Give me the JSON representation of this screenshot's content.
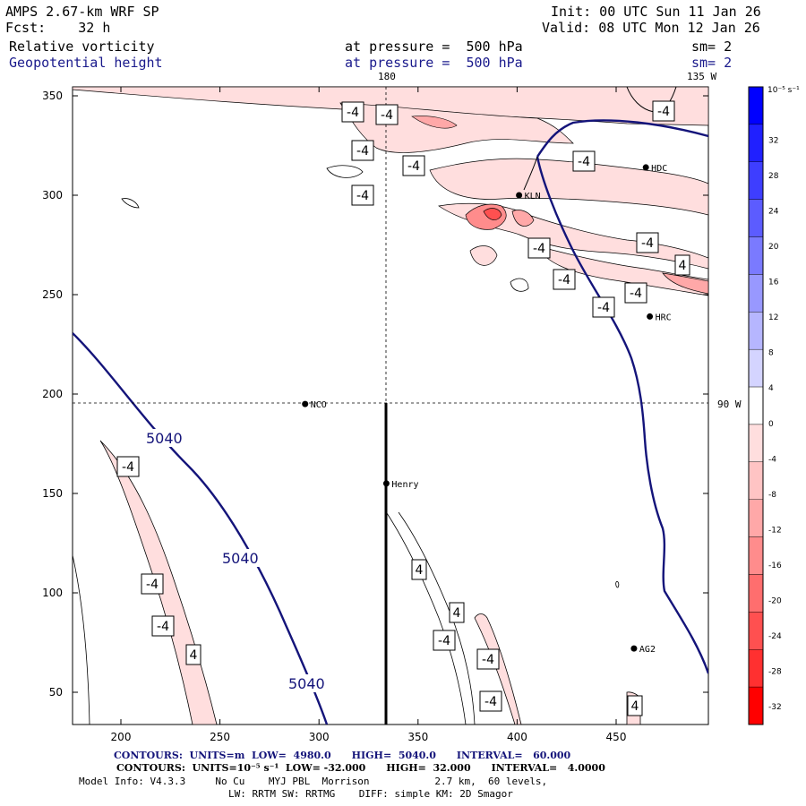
{
  "header": {
    "model": "AMPS 2.67-km WRF SP",
    "forecast": "Fcst:    32 h",
    "init": "Init: 00 UTC Sun 11 Jan 26",
    "valid": "Valid: 08 UTC Mon 12 Jan 26",
    "field1": "Relative vorticity",
    "field1_level": "at pressure =  500 hPa",
    "field1_sm": "sm= 2",
    "field2": "Geopotential height",
    "field2_level": "at pressure =  500 hPa",
    "field2_sm": "sm= 2"
  },
  "map": {
    "lon_top_180": "180",
    "lon_top_135w": "135 W",
    "lon_right_90w": "90 W",
    "x_ticks": [
      "200",
      "250",
      "300",
      "350",
      "400",
      "450"
    ],
    "y_ticks": [
      "350",
      "300",
      "250",
      "200",
      "150",
      "100",
      "50"
    ],
    "stations": [
      {
        "name": "HDC",
        "x": 465,
        "y": 314
      },
      {
        "name": "KLN",
        "x": 401,
        "y": 300
      },
      {
        "name": "HRC",
        "x": 467,
        "y": 239
      },
      {
        "name": "NCO",
        "x": 293,
        "y": 195
      },
      {
        "name": "Henry",
        "x": 334,
        "y": 155
      },
      {
        "name": "AG2",
        "x": 459,
        "y": 72
      }
    ],
    "height_label": "5040",
    "vort_labels": [
      "-4",
      "-4",
      "-4",
      "-4",
      "-4",
      "-4",
      "-4",
      "-4",
      "4",
      "-4",
      "-4",
      "-4",
      "-4",
      "-4",
      "-4",
      "-4",
      "4",
      "4",
      "4",
      "-4",
      "-4",
      "-4",
      "4"
    ]
  },
  "colorbar": {
    "unit": "10⁻⁵ s⁻¹",
    "ticks": [
      "32",
      "28",
      "24",
      "20",
      "16",
      "12",
      "8",
      "4",
      "0",
      "-4",
      "-8",
      "-12",
      "-16",
      "-20",
      "-24",
      "-28",
      "-32"
    ],
    "colors": [
      "#0000ff",
      "#2020ff",
      "#3e3eff",
      "#5c5cff",
      "#7a7aff",
      "#9898ff",
      "#b6b6ff",
      "#d4d4ff",
      "#ffffff",
      "#ffdede",
      "#ffc4c4",
      "#ffa8a8",
      "#ff8c8c",
      "#ff6e6e",
      "#ff5050",
      "#ff3030",
      "#ff0000"
    ]
  },
  "footer": {
    "line1": "CONTOURS:  UNITS=m  LOW=  4980.0      HIGH=  5040.0      INTERVAL=   60.000",
    "line2": "CONTOURS:  UNITS=10⁻⁵ s⁻¹  LOW= -32.000      HIGH=  32.000      INTERVAL=   4.0000",
    "line3": "Model Info: V4.3.3     No Cu    MYJ PBL  Morrison           2.7 km,  60 levels,",
    "line4": "LW: RRTM SW: RRTMG    DIFF: simple KM: 2D Smagor"
  }
}
